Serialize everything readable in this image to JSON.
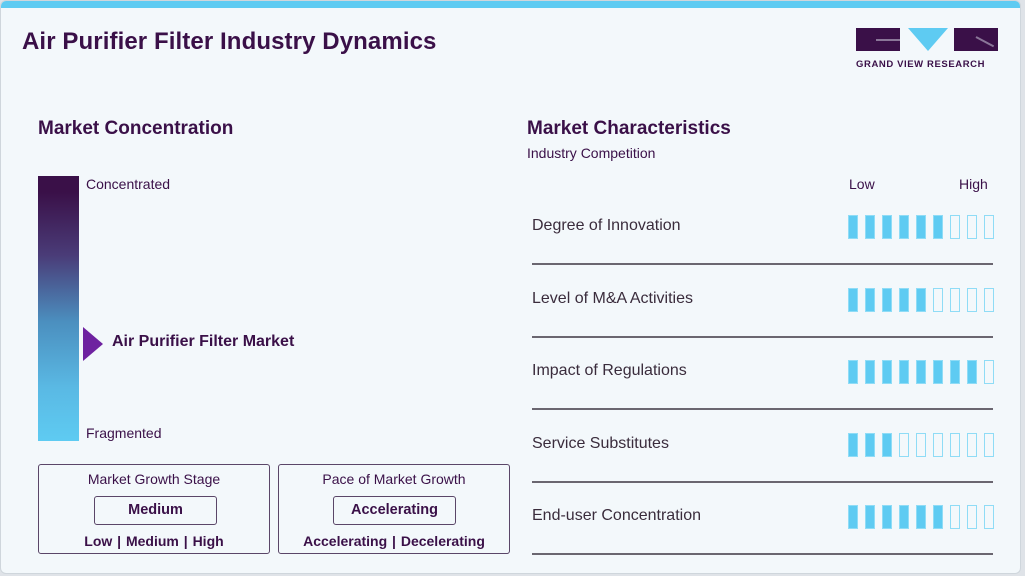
{
  "header": {
    "title": "Air Purifier Filter Industry Dynamics",
    "logo_text": "GRAND VIEW RESEARCH"
  },
  "colors": {
    "primary": "#3a1048",
    "accent": "#5ecbf2",
    "marker": "#6e22a0",
    "background": "#f3f8fb"
  },
  "market_concentration": {
    "title": "Market Concentration",
    "top_label": "Concentrated",
    "bottom_label": "Fragmented",
    "marker_label": "Air Purifier Filter Market",
    "marker_position_pct": 63
  },
  "growth_stage": {
    "title": "Market Growth Stage",
    "value": "Medium",
    "options": "Low  |  Medium  |  High"
  },
  "growth_pace": {
    "title": "Pace of Market Growth",
    "value": "Accelerating",
    "options": "Accelerating  |  Decelerating"
  },
  "market_characteristics": {
    "title": "Market Characteristics",
    "subtitle": "Industry Competition",
    "scale_low": "Low",
    "scale_high": "High",
    "max_level": 9,
    "rows": [
      {
        "label": "Degree of Innovation",
        "level": 6
      },
      {
        "label": "Level of M&A Activities",
        "level": 5
      },
      {
        "label": "Impact of Regulations",
        "level": 8
      },
      {
        "label": "Service Substitutes",
        "level": 3
      },
      {
        "label": "End-user Concentration",
        "level": 6
      }
    ]
  }
}
